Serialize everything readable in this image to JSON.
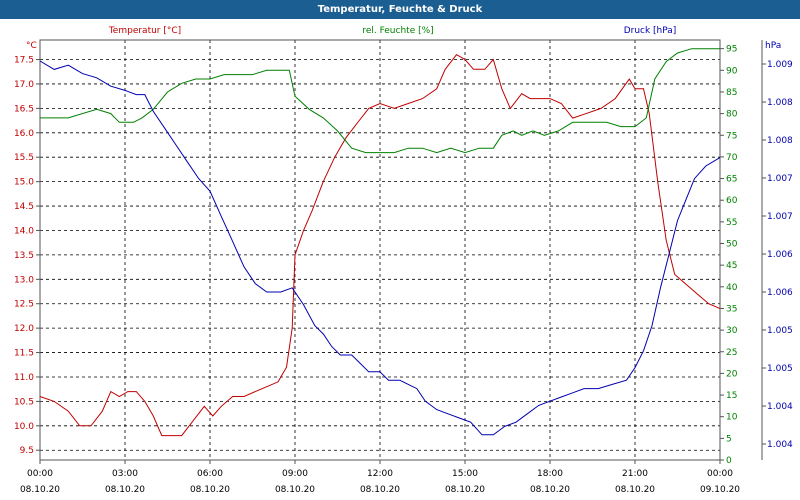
{
  "window": {
    "title": "Temperatur, Feuchte & Druck"
  },
  "chart_data": {
    "type": "line",
    "title": "Temperatur, Feuchte & Druck",
    "grid": true,
    "x": {
      "labels": [
        {
          "time": "00:00",
          "date": "08.10.20"
        },
        {
          "time": "03:00",
          "date": "08.10.20"
        },
        {
          "time": "06:00",
          "date": "08.10.20"
        },
        {
          "time": "09:00",
          "date": "08.10.20"
        },
        {
          "time": "12:00",
          "date": "08.10.20"
        },
        {
          "time": "15:00",
          "date": "08.10.20"
        },
        {
          "time": "18:00",
          "date": "08.10.20"
        },
        {
          "time": "21:00",
          "date": "08.10.20"
        },
        {
          "time": "00:00",
          "date": "09.10.20"
        }
      ],
      "range_hours": [
        0,
        24
      ]
    },
    "axes": {
      "temperature": {
        "unit": "°C",
        "header": "Temperatur [°C]",
        "range": [
          9.3,
          17.9
        ],
        "ticks": [
          "9.5",
          "10.0",
          "10.5",
          "11.0",
          "11.5",
          "12.0",
          "12.5",
          "13.0",
          "13.5",
          "14.0",
          "14.5",
          "15.0",
          "15.5",
          "16.0",
          "16.5",
          "17.0",
          "17.5"
        ],
        "color": "#c00000"
      },
      "humidity": {
        "unit": "%",
        "header": "rel. Feuchte [%]",
        "range": [
          0,
          97
        ],
        "ticks": [
          "0",
          "5",
          "10",
          "15",
          "20",
          "25",
          "30",
          "35",
          "40",
          "45",
          "50",
          "55",
          "60",
          "65",
          "70",
          "75",
          "80",
          "85",
          "90",
          "95"
        ],
        "color": "#008000"
      },
      "pressure": {
        "unit": "hPa",
        "header": "Druck [hPa]",
        "ticks": [
          "1.004",
          "1.004",
          "1.005",
          "1.005",
          "1.006",
          "1.006",
          "1.007",
          "1.007",
          "1.008",
          "1.008",
          "1.009"
        ],
        "color": "#0000b0"
      }
    },
    "series": [
      {
        "name": "Temperatur",
        "axis": "temperature",
        "points": [
          [
            0,
            10.6
          ],
          [
            0.5,
            10.5
          ],
          [
            1,
            10.3
          ],
          [
            1.4,
            10.0
          ],
          [
            1.8,
            10.0
          ],
          [
            2.2,
            10.3
          ],
          [
            2.5,
            10.7
          ],
          [
            2.8,
            10.6
          ],
          [
            3.1,
            10.7
          ],
          [
            3.4,
            10.7
          ],
          [
            3.7,
            10.5
          ],
          [
            4.0,
            10.2
          ],
          [
            4.3,
            9.8
          ],
          [
            4.6,
            9.8
          ],
          [
            5.0,
            9.8
          ],
          [
            5.4,
            10.1
          ],
          [
            5.8,
            10.4
          ],
          [
            6.1,
            10.2
          ],
          [
            6.4,
            10.4
          ],
          [
            6.8,
            10.6
          ],
          [
            7.2,
            10.6
          ],
          [
            7.6,
            10.7
          ],
          [
            8.0,
            10.8
          ],
          [
            8.4,
            10.9
          ],
          [
            8.7,
            11.2
          ],
          [
            8.9,
            12.0
          ],
          [
            9.0,
            13.5
          ],
          [
            9.3,
            14.0
          ],
          [
            9.6,
            14.4
          ],
          [
            10.0,
            15.0
          ],
          [
            10.4,
            15.5
          ],
          [
            10.8,
            15.9
          ],
          [
            11.2,
            16.2
          ],
          [
            11.6,
            16.5
          ],
          [
            12.0,
            16.6
          ],
          [
            12.5,
            16.5
          ],
          [
            13.0,
            16.6
          ],
          [
            13.5,
            16.7
          ],
          [
            14.0,
            16.9
          ],
          [
            14.3,
            17.3
          ],
          [
            14.7,
            17.6
          ],
          [
            15.0,
            17.5
          ],
          [
            15.3,
            17.3
          ],
          [
            15.7,
            17.3
          ],
          [
            16.0,
            17.5
          ],
          [
            16.3,
            16.9
          ],
          [
            16.6,
            16.5
          ],
          [
            17.0,
            16.8
          ],
          [
            17.3,
            16.7
          ],
          [
            17.7,
            16.7
          ],
          [
            18.0,
            16.7
          ],
          [
            18.4,
            16.6
          ],
          [
            18.8,
            16.3
          ],
          [
            19.3,
            16.4
          ],
          [
            19.8,
            16.5
          ],
          [
            20.3,
            16.7
          ],
          [
            20.8,
            17.1
          ],
          [
            21.0,
            16.9
          ],
          [
            21.3,
            16.9
          ],
          [
            21.5,
            16.4
          ],
          [
            21.8,
            15.0
          ],
          [
            22.1,
            13.8
          ],
          [
            22.4,
            13.1
          ],
          [
            22.8,
            12.9
          ],
          [
            23.2,
            12.7
          ],
          [
            23.6,
            12.5
          ],
          [
            24.0,
            12.4
          ]
        ]
      },
      {
        "name": "rel. Feuchte",
        "axis": "humidity",
        "points": [
          [
            0,
            79
          ],
          [
            1,
            79
          ],
          [
            2,
            81
          ],
          [
            2.5,
            80
          ],
          [
            2.8,
            78
          ],
          [
            3.3,
            78
          ],
          [
            3.6,
            79
          ],
          [
            4.0,
            81
          ],
          [
            4.5,
            85
          ],
          [
            5.0,
            87
          ],
          [
            5.5,
            88
          ],
          [
            6.0,
            88
          ],
          [
            6.5,
            89
          ],
          [
            7.0,
            89
          ],
          [
            7.5,
            89
          ],
          [
            8.0,
            90
          ],
          [
            8.5,
            90
          ],
          [
            8.8,
            90
          ],
          [
            9.0,
            84
          ],
          [
            9.5,
            81
          ],
          [
            10.0,
            79
          ],
          [
            10.5,
            76
          ],
          [
            11.0,
            72
          ],
          [
            11.5,
            71
          ],
          [
            12.0,
            71
          ],
          [
            12.5,
            71
          ],
          [
            13.0,
            72
          ],
          [
            13.5,
            72
          ],
          [
            14.0,
            71
          ],
          [
            14.5,
            72
          ],
          [
            15.0,
            71
          ],
          [
            15.5,
            72
          ],
          [
            16.0,
            72
          ],
          [
            16.3,
            75
          ],
          [
            16.7,
            76
          ],
          [
            17.0,
            75
          ],
          [
            17.4,
            76
          ],
          [
            17.8,
            75
          ],
          [
            18.3,
            76
          ],
          [
            18.8,
            78
          ],
          [
            19.5,
            78
          ],
          [
            20.0,
            78
          ],
          [
            20.5,
            77
          ],
          [
            21.0,
            77
          ],
          [
            21.4,
            79
          ],
          [
            21.7,
            88
          ],
          [
            22.1,
            92
          ],
          [
            22.5,
            94
          ],
          [
            23.0,
            95
          ],
          [
            23.5,
            95
          ],
          [
            24.0,
            95
          ]
        ]
      },
      {
        "name": "Druck",
        "axis": "pressure",
        "points": [
          [
            0,
            95
          ],
          [
            0.5,
            93
          ],
          [
            1,
            94
          ],
          [
            1.5,
            92
          ],
          [
            2,
            91
          ],
          [
            2.5,
            89
          ],
          [
            3,
            88
          ],
          [
            3.4,
            87
          ],
          [
            3.7,
            87
          ],
          [
            4.0,
            83
          ],
          [
            4.4,
            79
          ],
          [
            4.8,
            75
          ],
          [
            5.2,
            71
          ],
          [
            5.6,
            67
          ],
          [
            6.0,
            64
          ],
          [
            6.4,
            58
          ],
          [
            6.8,
            52
          ],
          [
            7.2,
            46
          ],
          [
            7.6,
            42
          ],
          [
            8.0,
            40
          ],
          [
            8.5,
            40
          ],
          [
            8.9,
            41
          ],
          [
            9.3,
            37
          ],
          [
            9.7,
            32
          ],
          [
            10.0,
            30
          ],
          [
            10.3,
            27
          ],
          [
            10.6,
            25
          ],
          [
            11.0,
            25
          ],
          [
            11.3,
            23
          ],
          [
            11.6,
            21
          ],
          [
            12.0,
            21
          ],
          [
            12.3,
            19
          ],
          [
            12.7,
            19
          ],
          [
            13.0,
            18
          ],
          [
            13.3,
            17
          ],
          [
            13.6,
            14
          ],
          [
            14.0,
            12
          ],
          [
            14.4,
            11
          ],
          [
            14.8,
            10
          ],
          [
            15.2,
            9
          ],
          [
            15.6,
            6
          ],
          [
            16.0,
            6
          ],
          [
            16.4,
            8
          ],
          [
            16.8,
            9
          ],
          [
            17.2,
            11
          ],
          [
            17.6,
            13
          ],
          [
            18.0,
            14
          ],
          [
            18.4,
            15
          ],
          [
            18.8,
            16
          ],
          [
            19.2,
            17
          ],
          [
            19.7,
            17
          ],
          [
            20.2,
            18
          ],
          [
            20.7,
            19
          ],
          [
            21.0,
            22
          ],
          [
            21.3,
            26
          ],
          [
            21.6,
            32
          ],
          [
            21.9,
            41
          ],
          [
            22.2,
            49
          ],
          [
            22.5,
            57
          ],
          [
            22.8,
            62
          ],
          [
            23.1,
            67
          ],
          [
            23.5,
            70
          ],
          [
            24.0,
            72
          ]
        ]
      }
    ]
  }
}
